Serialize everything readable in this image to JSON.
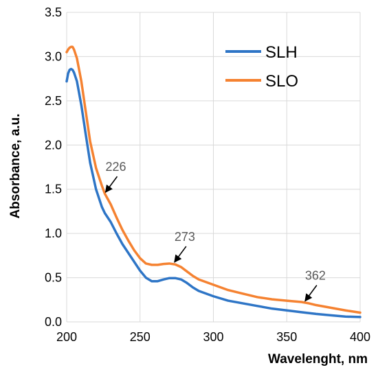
{
  "chart_data": {
    "type": "line",
    "title": "",
    "xlabel": "Wavelenght, nm",
    "ylabel": "Absorbance, a.u.",
    "xlim": [
      200,
      400
    ],
    "ylim": [
      0,
      3.5
    ],
    "x_ticks": [
      "200",
      "250",
      "300",
      "350",
      "400"
    ],
    "y_ticks": [
      "0.0",
      "0.5",
      "1.0",
      "1.5",
      "2.0",
      "2.5",
      "3.0",
      "3.5"
    ],
    "grid": true,
    "legend_position": "top-right",
    "series": [
      {
        "name": "SLH",
        "color": "#2e75c6",
        "points": [
          [
            200,
            2.72
          ],
          [
            201,
            2.81
          ],
          [
            202,
            2.85
          ],
          [
            203,
            2.86
          ],
          [
            204,
            2.85
          ],
          [
            205,
            2.82
          ],
          [
            207,
            2.72
          ],
          [
            210,
            2.45
          ],
          [
            213,
            2.12
          ],
          [
            216,
            1.8
          ],
          [
            220,
            1.5
          ],
          [
            224,
            1.3
          ],
          [
            226,
            1.23
          ],
          [
            230,
            1.13
          ],
          [
            234,
            1.0
          ],
          [
            238,
            0.88
          ],
          [
            242,
            0.78
          ],
          [
            246,
            0.68
          ],
          [
            250,
            0.58
          ],
          [
            254,
            0.5
          ],
          [
            258,
            0.46
          ],
          [
            262,
            0.46
          ],
          [
            266,
            0.48
          ],
          [
            270,
            0.495
          ],
          [
            274,
            0.495
          ],
          [
            278,
            0.48
          ],
          [
            282,
            0.44
          ],
          [
            286,
            0.39
          ],
          [
            290,
            0.35
          ],
          [
            295,
            0.32
          ],
          [
            300,
            0.29
          ],
          [
            310,
            0.24
          ],
          [
            320,
            0.21
          ],
          [
            330,
            0.18
          ],
          [
            340,
            0.15
          ],
          [
            350,
            0.13
          ],
          [
            360,
            0.11
          ],
          [
            370,
            0.09
          ],
          [
            380,
            0.075
          ],
          [
            390,
            0.06
          ],
          [
            400,
            0.055
          ]
        ]
      },
      {
        "name": "SLO",
        "color": "#f58231",
        "points": [
          [
            200,
            3.05
          ],
          [
            201,
            3.08
          ],
          [
            202,
            3.1
          ],
          [
            203,
            3.11
          ],
          [
            204,
            3.11
          ],
          [
            205,
            3.08
          ],
          [
            207,
            2.98
          ],
          [
            210,
            2.72
          ],
          [
            213,
            2.38
          ],
          [
            216,
            2.04
          ],
          [
            220,
            1.74
          ],
          [
            224,
            1.54
          ],
          [
            226,
            1.45
          ],
          [
            230,
            1.33
          ],
          [
            234,
            1.18
          ],
          [
            238,
            1.04
          ],
          [
            242,
            0.92
          ],
          [
            246,
            0.81
          ],
          [
            250,
            0.72
          ],
          [
            254,
            0.66
          ],
          [
            258,
            0.645
          ],
          [
            262,
            0.645
          ],
          [
            266,
            0.655
          ],
          [
            270,
            0.66
          ],
          [
            274,
            0.65
          ],
          [
            278,
            0.62
          ],
          [
            282,
            0.57
          ],
          [
            286,
            0.52
          ],
          [
            290,
            0.48
          ],
          [
            295,
            0.45
          ],
          [
            300,
            0.42
          ],
          [
            310,
            0.36
          ],
          [
            320,
            0.32
          ],
          [
            330,
            0.28
          ],
          [
            340,
            0.255
          ],
          [
            350,
            0.24
          ],
          [
            360,
            0.225
          ],
          [
            365,
            0.21
          ],
          [
            370,
            0.19
          ],
          [
            380,
            0.16
          ],
          [
            390,
            0.13
          ],
          [
            400,
            0.105
          ]
        ]
      }
    ],
    "annotations": [
      {
        "label": "226",
        "x": 226,
        "y": 1.45
      },
      {
        "label": "273",
        "x": 273,
        "y": 0.66
      },
      {
        "label": "362",
        "x": 362,
        "y": 0.22
      }
    ]
  }
}
